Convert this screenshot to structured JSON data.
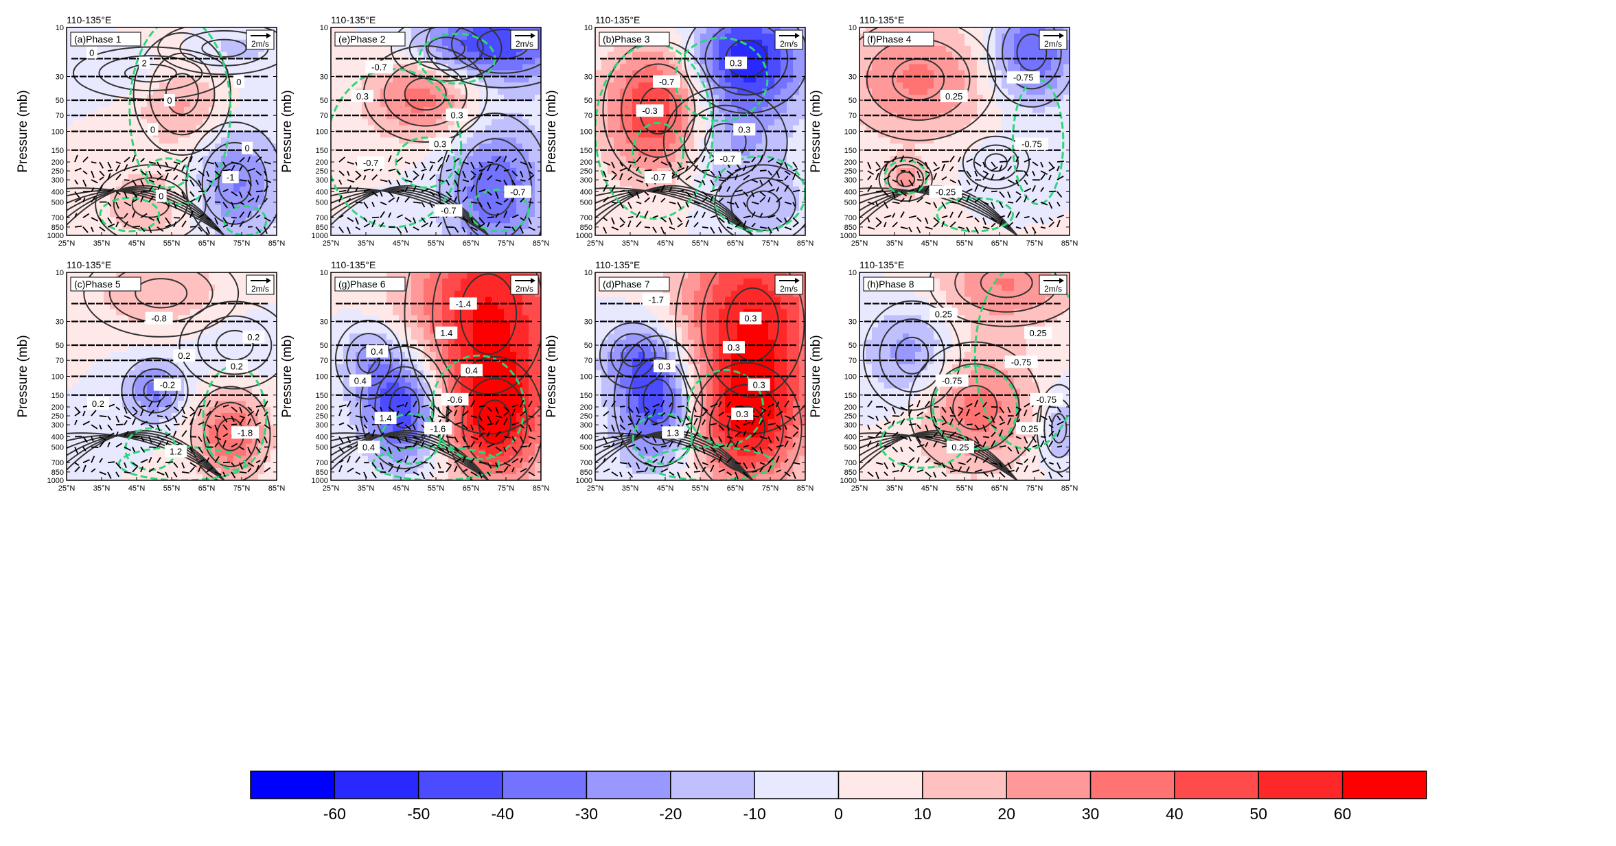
{
  "chart_data": {
    "type": "heatmap",
    "region_label": "110-135°E",
    "ylabel": "Pressure (mb)",
    "pressure_levels": [
      10,
      30,
      50,
      70,
      100,
      150,
      200,
      250,
      300,
      400,
      500,
      700,
      850,
      1000
    ],
    "latitude_ticks": [
      "25°N",
      "35°N",
      "45°N",
      "55°N",
      "65°N",
      "75°N",
      "85°N"
    ],
    "latitudes": [
      25,
      35,
      45,
      55,
      65,
      75,
      85
    ],
    "vector_reference": "2m/s",
    "colorbar": {
      "tick_labels": [
        "-60",
        "-50",
        "-40",
        "-30",
        "-20",
        "-10",
        "0",
        "10",
        "20",
        "30",
        "40",
        "50",
        "60"
      ],
      "colors": [
        "#0000ff",
        "#2828ff",
        "#4b4bff",
        "#7373ff",
        "#9898ff",
        "#c0c0ff",
        "#e8e8ff",
        "#ffe8e8",
        "#ffc0c0",
        "#ff9898",
        "#ff7373",
        "#ff4b4b",
        "#ff2828",
        "#ff0000"
      ]
    },
    "panels": [
      {
        "label": "(a)Phase 1",
        "blobs": [
          [
            0.55,
            0.32,
            0.22,
            0.28,
            25
          ],
          [
            0.4,
            0.85,
            0.25,
            0.18,
            18
          ],
          [
            0.8,
            0.75,
            0.22,
            0.28,
            -32
          ],
          [
            0.4,
            0.22,
            0.35,
            0.12,
            -12
          ],
          [
            0.75,
            0.1,
            0.3,
            0.12,
            -15
          ]
        ],
        "green_contours": [
          [
            0.48,
            0.7,
            0.1,
            0.07
          ],
          [
            0.54,
            0.4,
            0.24,
            0.45
          ],
          [
            0.85,
            0.93,
            0.1,
            0.07
          ],
          [
            0.3,
            0.9,
            0.14,
            0.08
          ]
        ],
        "contour_labels": [
          "0",
          "0",
          "0",
          "0",
          "0",
          "0",
          "-1",
          "2"
        ]
      },
      {
        "label": "(e)Phase 2",
        "blobs": [
          [
            0.45,
            0.32,
            0.28,
            0.22,
            38
          ],
          [
            0.78,
            0.78,
            0.25,
            0.35,
            -38
          ],
          [
            0.82,
            0.08,
            0.35,
            0.2,
            -42
          ],
          [
            0.55,
            0.1,
            0.25,
            0.15,
            -18
          ]
        ],
        "green_contours": [
          [
            0.45,
            0.65,
            0.14,
            0.12
          ],
          [
            0.3,
            0.58,
            0.32,
            0.38
          ],
          [
            0.8,
            0.88,
            0.14,
            0.1
          ],
          [
            0.6,
            0.15,
            0.18,
            0.12
          ]
        ],
        "contour_labels": [
          "-0.7",
          "0.3",
          "-0.7",
          "-0.7",
          "0.3",
          "0.3",
          "-0.7"
        ]
      },
      {
        "label": "(b)Phase 3",
        "blobs": [
          [
            0.3,
            0.4,
            0.25,
            0.32,
            55
          ],
          [
            0.72,
            0.15,
            0.28,
            0.25,
            -58
          ],
          [
            0.62,
            0.55,
            0.28,
            0.25,
            -22
          ],
          [
            0.8,
            0.85,
            0.22,
            0.18,
            -15
          ]
        ],
        "green_contours": [
          [
            0.3,
            0.6,
            0.12,
            0.14
          ],
          [
            0.28,
            0.5,
            0.28,
            0.42
          ],
          [
            0.78,
            0.8,
            0.22,
            0.18
          ],
          [
            0.6,
            0.25,
            0.22,
            0.2
          ]
        ],
        "contour_labels": [
          "-0.7",
          "0.3",
          "-0.7",
          "0.3",
          "-0.3",
          "-0.7"
        ]
      },
      {
        "label": "(f)Phase 4",
        "blobs": [
          [
            0.28,
            0.25,
            0.35,
            0.28,
            32
          ],
          [
            0.22,
            0.73,
            0.12,
            0.1,
            22
          ],
          [
            0.82,
            0.12,
            0.2,
            0.25,
            -42
          ],
          [
            0.65,
            0.65,
            0.15,
            0.12,
            -10
          ]
        ],
        "green_contours": [
          [
            0.22,
            0.72,
            0.1,
            0.08
          ],
          [
            0.85,
            0.55,
            0.12,
            0.3
          ],
          [
            0.55,
            0.9,
            0.18,
            0.08
          ]
        ],
        "contour_labels": [
          "0.25",
          "-0.75",
          "-0.25",
          "-0.75"
        ]
      },
      {
        "label": "(c)Phase 5",
        "blobs": [
          [
            0.45,
            0.1,
            0.35,
            0.2,
            18
          ],
          [
            0.42,
            0.57,
            0.15,
            0.15,
            -32
          ],
          [
            0.78,
            0.78,
            0.18,
            0.22,
            40
          ],
          [
            0.8,
            0.35,
            0.25,
            0.2,
            -8
          ]
        ],
        "green_contours": [
          [
            0.4,
            0.85,
            0.12,
            0.1
          ],
          [
            0.8,
            0.7,
            0.15,
            0.25
          ],
          [
            0.55,
            0.92,
            0.3,
            0.08
          ]
        ],
        "contour_labels": [
          "0.2",
          "0.2",
          "1.2",
          "0.2",
          "-0.2",
          "-1.8",
          "-0.8",
          "0.2"
        ]
      },
      {
        "label": "(g)Phase 6",
        "blobs": [
          [
            0.75,
            0.2,
            0.38,
            0.55,
            60
          ],
          [
            0.35,
            0.65,
            0.2,
            0.28,
            -55
          ],
          [
            0.18,
            0.42,
            0.15,
            0.18,
            -20
          ],
          [
            0.78,
            0.72,
            0.22,
            0.3,
            48
          ]
        ],
        "green_contours": [
          [
            0.38,
            0.8,
            0.14,
            0.12
          ],
          [
            0.7,
            0.65,
            0.22,
            0.25
          ],
          [
            0.5,
            0.92,
            0.3,
            0.08
          ]
        ],
        "contour_labels": [
          "0.4",
          "1.4",
          "-1.4",
          "0.4",
          "-0.6",
          "0.4",
          "1.4",
          "0.4",
          "-1.6"
        ]
      },
      {
        "label": "(d)Phase 7",
        "blobs": [
          [
            0.75,
            0.25,
            0.35,
            0.5,
            60
          ],
          [
            0.3,
            0.62,
            0.2,
            0.3,
            -52
          ],
          [
            0.18,
            0.4,
            0.15,
            0.15,
            -22
          ],
          [
            0.72,
            0.75,
            0.25,
            0.3,
            45
          ]
        ],
        "green_contours": [
          [
            0.32,
            0.8,
            0.14,
            0.12
          ],
          [
            0.62,
            0.65,
            0.18,
            0.18
          ],
          [
            0.55,
            0.92,
            0.3,
            0.08
          ]
        ],
        "contour_labels": [
          "0.3",
          "1.3",
          "0.3",
          "0.3",
          "0.3",
          "-1.7",
          "0.3"
        ]
      },
      {
        "label": "(h)Phase 8",
        "blobs": [
          [
            0.7,
            0.05,
            0.35,
            0.2,
            30
          ],
          [
            0.25,
            0.4,
            0.22,
            0.25,
            -28
          ],
          [
            0.55,
            0.65,
            0.3,
            0.3,
            35
          ],
          [
            0.95,
            0.75,
            0.1,
            0.2,
            -22
          ]
        ],
        "green_contours": [
          [
            0.55,
            0.65,
            0.2,
            0.2
          ],
          [
            0.3,
            0.82,
            0.2,
            0.12
          ],
          [
            0.8,
            0.4,
            0.25,
            0.45
          ]
        ],
        "contour_labels": [
          "-0.75",
          "0.25",
          "0.25",
          "-0.75",
          "0.25",
          "0.25",
          "-0.75"
        ]
      }
    ]
  }
}
